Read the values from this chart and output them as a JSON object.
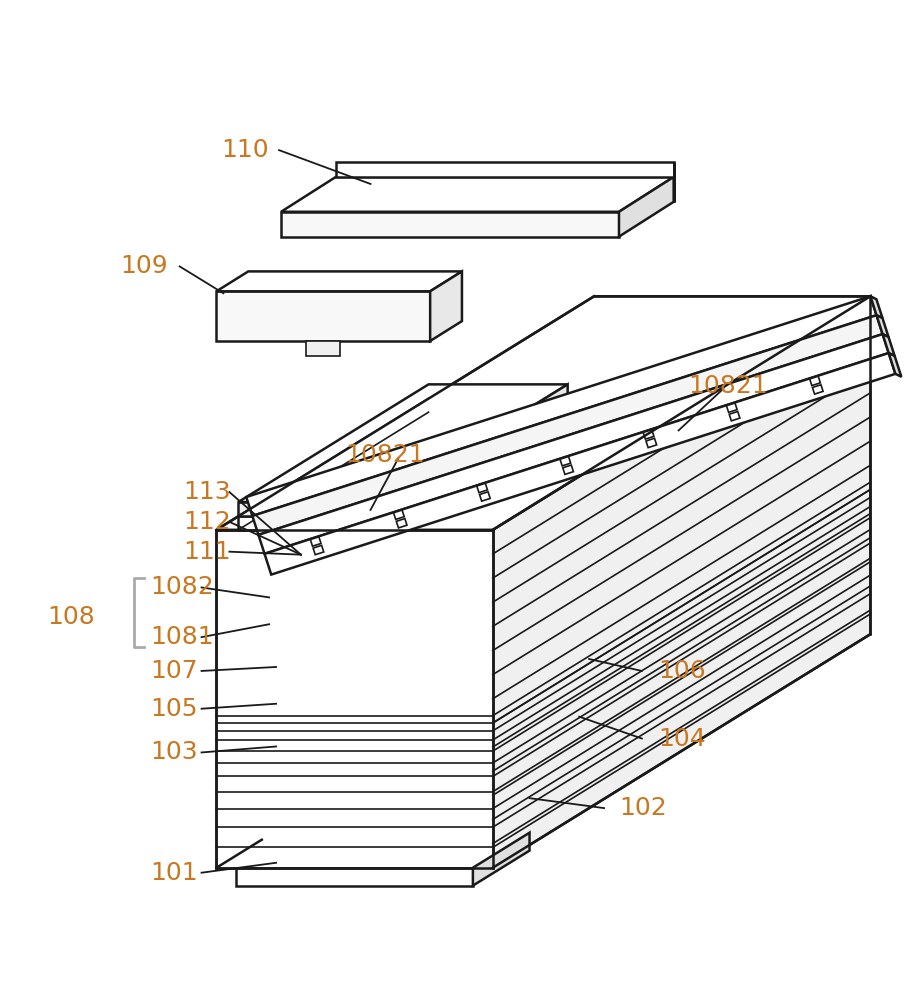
{
  "bg_color": "#ffffff",
  "line_color": "#1a1a1a",
  "label_color": "#c87820",
  "lw": 1.8,
  "lw_thin": 1.2,
  "fig_width": 9.08,
  "fig_height": 10.0
}
